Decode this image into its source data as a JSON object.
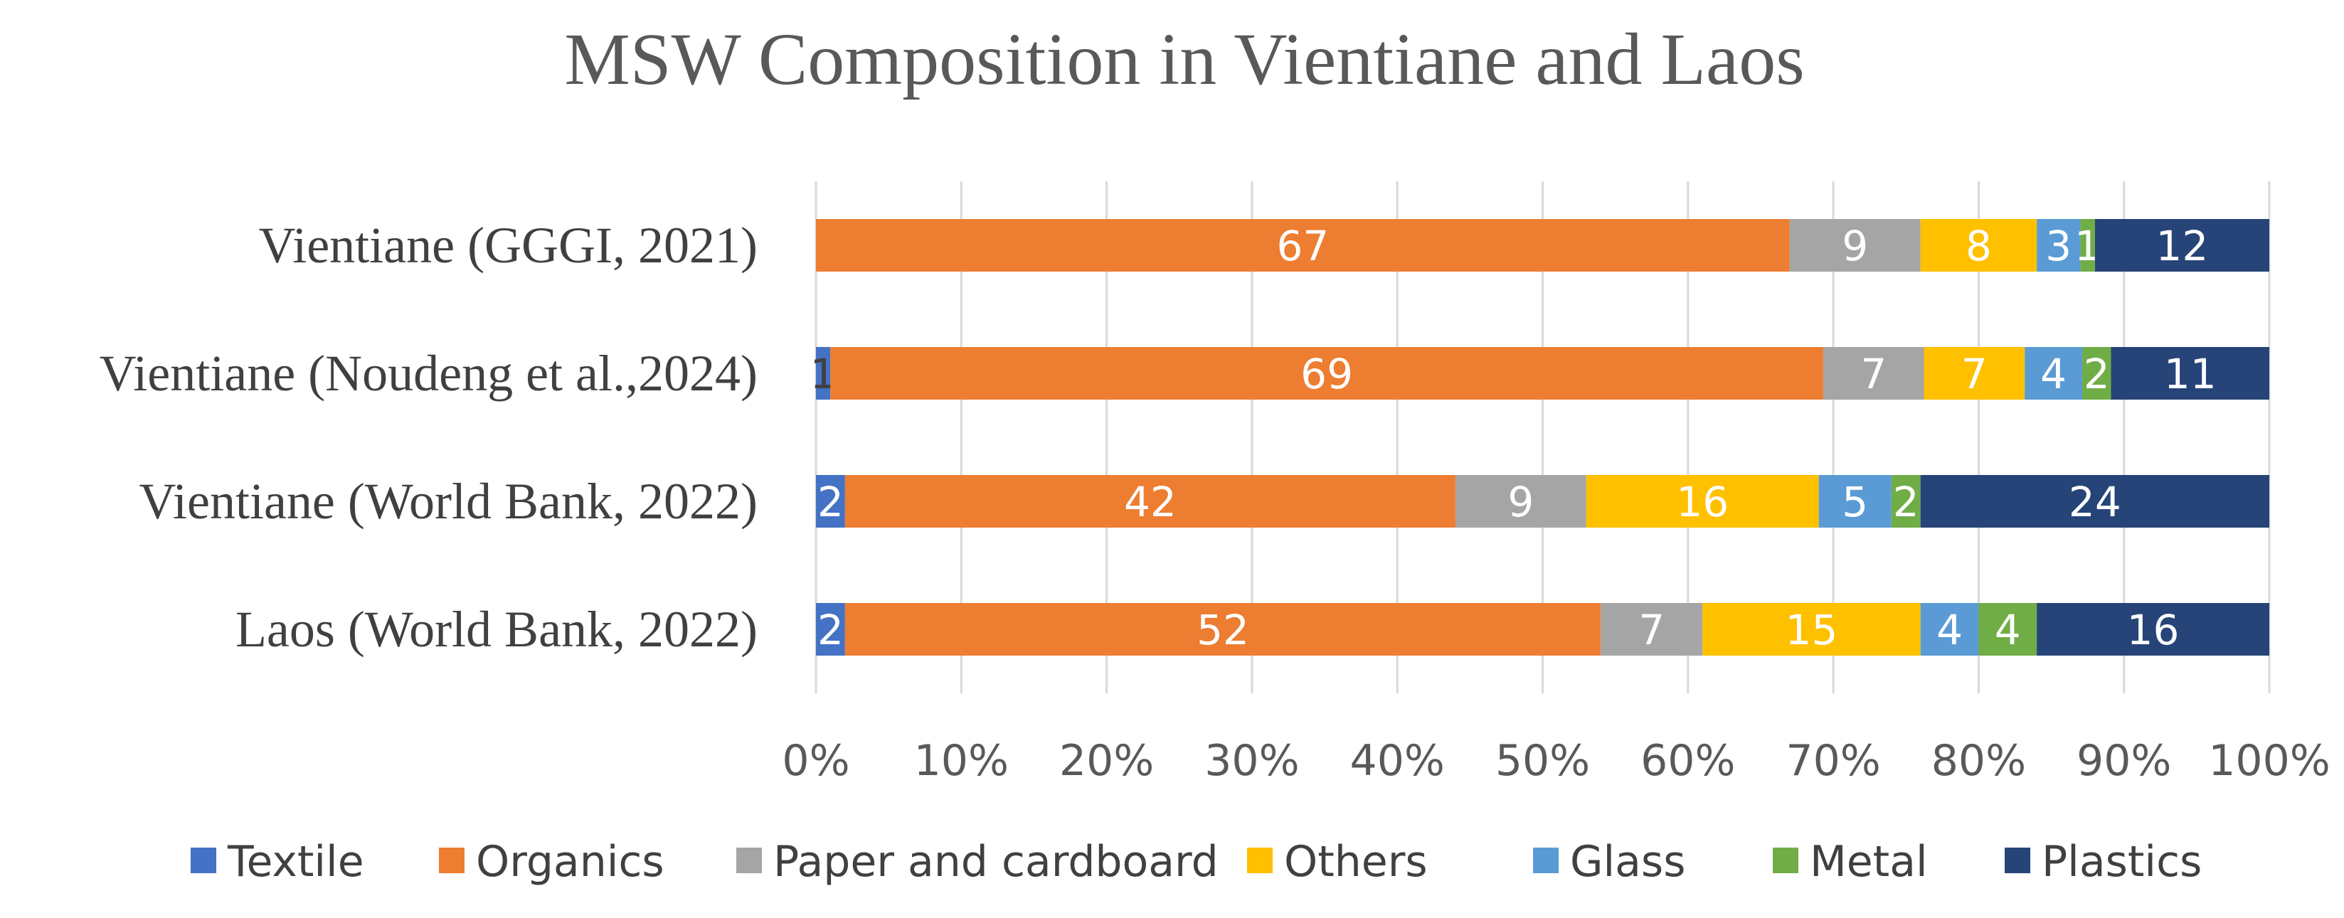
{
  "chart_data": {
    "type": "bar",
    "orientation": "horizontal",
    "stacked": "percent",
    "title": "MSW Composition in Vientiane and Laos",
    "categories": [
      "Vientiane (GGGI, 2021)",
      "Vientiane (Noudeng et al.,2024)",
      "Vientiane (World Bank, 2022)",
      "Laos (World Bank, 2022)"
    ],
    "series": [
      {
        "name": "Textile",
        "color": "#4472C4",
        "values": [
          0,
          1,
          2,
          2
        ]
      },
      {
        "name": "Organics",
        "color": "#ED7D31",
        "values": [
          67,
          69,
          42,
          52
        ]
      },
      {
        "name": "Paper and cardboard",
        "color": "#A5A5A5",
        "values": [
          9,
          7,
          9,
          7
        ]
      },
      {
        "name": "Others",
        "color": "#FFC000",
        "values": [
          8,
          7,
          16,
          15
        ]
      },
      {
        "name": "Glass",
        "color": "#5B9BD5",
        "values": [
          3,
          4,
          5,
          4
        ]
      },
      {
        "name": "Metal",
        "color": "#70AD47",
        "values": [
          1,
          2,
          2,
          4
        ]
      },
      {
        "name": "Plastics",
        "color": "#264478",
        "values": [
          12,
          11,
          24,
          16
        ]
      }
    ],
    "x_ticks": [
      "0%",
      "10%",
      "20%",
      "30%",
      "40%",
      "50%",
      "60%",
      "70%",
      "80%",
      "90%",
      "100%"
    ],
    "xlim": [
      0,
      100
    ],
    "grid": "vertical",
    "legend": "bottom"
  }
}
